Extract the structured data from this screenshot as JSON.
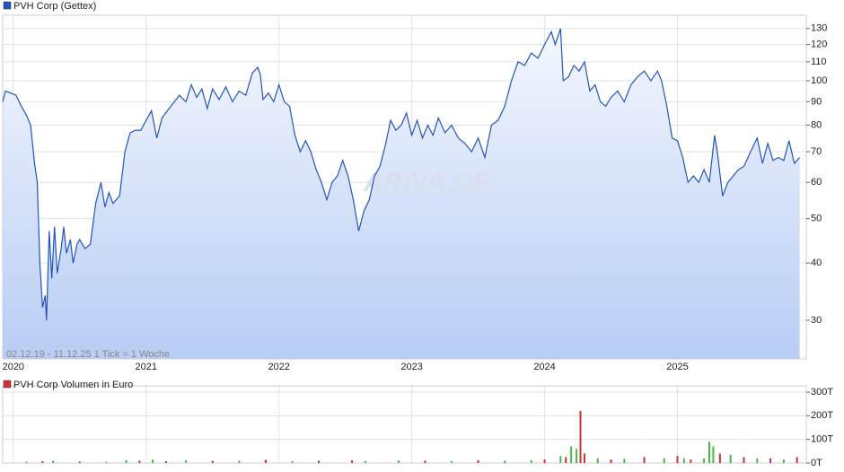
{
  "chart_data": [
    {
      "type": "line",
      "title": "PVH Corp (Gettex)",
      "subtitle": "02.12.19 - 11.12.25   1 Tick = 1 Woche",
      "watermark": "ARIVA.DE",
      "color": "#2255bb",
      "log_scale": true,
      "grid": true,
      "x": [
        2019.92,
        2019.94,
        2019.98,
        2020.02,
        2020.06,
        2020.1,
        2020.13,
        2020.16,
        2020.18,
        2020.2,
        2020.22,
        2020.24,
        2020.25,
        2020.27,
        2020.29,
        2020.31,
        2020.33,
        2020.36,
        2020.38,
        2020.4,
        2020.43,
        2020.45,
        2020.48,
        2020.5,
        2020.54,
        2020.58,
        2020.62,
        2020.66,
        2020.69,
        2020.72,
        2020.75,
        2020.8,
        2020.84,
        2020.88,
        2020.92,
        2020.96,
        2021.0,
        2021.04,
        2021.08,
        2021.12,
        2021.16,
        2021.2,
        2021.25,
        2021.3,
        2021.34,
        2021.38,
        2021.42,
        2021.46,
        2021.5,
        2021.55,
        2021.6,
        2021.65,
        2021.7,
        2021.75,
        2021.8,
        2021.84,
        2021.86,
        2021.88,
        2021.92,
        2021.96,
        2022.0,
        2022.04,
        2022.08,
        2022.12,
        2022.16,
        2022.2,
        2022.24,
        2022.28,
        2022.32,
        2022.36,
        2022.4,
        2022.44,
        2022.48,
        2022.52,
        2022.56,
        2022.6,
        2022.64,
        2022.68,
        2022.72,
        2022.76,
        2022.8,
        2022.84,
        2022.88,
        2022.92,
        2022.96,
        2023.0,
        2023.04,
        2023.08,
        2023.12,
        2023.16,
        2023.2,
        2023.25,
        2023.3,
        2023.35,
        2023.4,
        2023.45,
        2023.5,
        2023.55,
        2023.6,
        2023.65,
        2023.7,
        2023.75,
        2023.8,
        2023.85,
        2023.9,
        2023.95,
        2024.0,
        2024.05,
        2024.08,
        2024.12,
        2024.14,
        2024.18,
        2024.22,
        2024.26,
        2024.3,
        2024.34,
        2024.38,
        2024.42,
        2024.46,
        2024.5,
        2024.55,
        2024.6,
        2024.65,
        2024.7,
        2024.75,
        2024.8,
        2024.85,
        2024.88,
        2024.92,
        2024.96,
        2025.0,
        2025.04,
        2025.08,
        2025.12,
        2025.16,
        2025.2,
        2025.24,
        2025.28,
        2025.3,
        2025.34,
        2025.38,
        2025.42,
        2025.46,
        2025.5,
        2025.55,
        2025.6,
        2025.64,
        2025.68,
        2025.72,
        2025.76,
        2025.8,
        2025.84,
        2025.88,
        2025.92
      ],
      "values": [
        90,
        95,
        94,
        93,
        88,
        84,
        80,
        66,
        60,
        40,
        32,
        34,
        30,
        47,
        37,
        48,
        38,
        43,
        48,
        42,
        45,
        40,
        44,
        45,
        43,
        44,
        54,
        60,
        53,
        57,
        54,
        56,
        70,
        77,
        78,
        78,
        82,
        86,
        75,
        83,
        86,
        89,
        93,
        90,
        98,
        92,
        96,
        87,
        96,
        91,
        97,
        90,
        95,
        93,
        104,
        107,
        103,
        91,
        94,
        90,
        98,
        90,
        88,
        76,
        70,
        74,
        70,
        64,
        60,
        55,
        60,
        62,
        67,
        62,
        55,
        47,
        52,
        55,
        62,
        65,
        72,
        82,
        78,
        80,
        85,
        76,
        82,
        75,
        80,
        76,
        83,
        77,
        80,
        75,
        73,
        70,
        75,
        68,
        80,
        82,
        88,
        100,
        110,
        108,
        115,
        112,
        120,
        128,
        120,
        130,
        100,
        102,
        108,
        105,
        110,
        95,
        98,
        90,
        88,
        92,
        95,
        90,
        98,
        102,
        105,
        100,
        105,
        100,
        88,
        75,
        74,
        68,
        60,
        62,
        60,
        64,
        60,
        76,
        70,
        56,
        60,
        62,
        64,
        65,
        70,
        75,
        66,
        73,
        67,
        68,
        67,
        74,
        66,
        68
      ],
      "xlim": [
        2019.92,
        2025.97
      ],
      "xticks": [
        2020,
        2021,
        2022,
        2023,
        2024,
        2025
      ],
      "ylim": [
        24.7,
        139
      ],
      "yticks": [
        30,
        40,
        50,
        60,
        70,
        80,
        90,
        100,
        110,
        120,
        130
      ]
    },
    {
      "type": "bar",
      "title": "PVH Corp Volumen in Euro",
      "color": "#cc3333",
      "grid": true,
      "x": [
        2020.1,
        2020.22,
        2020.3,
        2020.5,
        2020.7,
        2020.85,
        2020.95,
        2021.05,
        2021.15,
        2021.3,
        2021.5,
        2021.7,
        2021.9,
        2022.1,
        2022.3,
        2022.55,
        2022.65,
        2022.9,
        2023.1,
        2023.3,
        2023.5,
        2023.7,
        2023.9,
        2024.0,
        2024.12,
        2024.16,
        2024.2,
        2024.24,
        2024.27,
        2024.3,
        2024.4,
        2024.5,
        2024.6,
        2024.75,
        2024.9,
        2025.0,
        2025.05,
        2025.1,
        2025.2,
        2025.24,
        2025.27,
        2025.32,
        2025.4,
        2025.5,
        2025.6,
        2025.7,
        2025.8,
        2025.9
      ],
      "values": [
        5,
        8,
        10,
        6,
        5,
        12,
        10,
        15,
        8,
        12,
        9,
        10,
        14,
        8,
        10,
        12,
        9,
        11,
        10,
        8,
        12,
        10,
        12,
        15,
        30,
        25,
        70,
        60,
        220,
        40,
        20,
        15,
        18,
        25,
        20,
        30,
        20,
        15,
        20,
        90,
        70,
        40,
        35,
        25,
        20,
        20,
        15,
        25
      ],
      "colors": [
        "#44bb44",
        "#cc3333",
        "#44bb44",
        "#cc3333",
        "#44bb44",
        "#44bb44",
        "#cc3333",
        "#44bb44",
        "#cc3333",
        "#44bb44",
        "#cc3333",
        "#44bb44",
        "#cc3333",
        "#44bb44",
        "#cc3333",
        "#cc3333",
        "#44bb44",
        "#44bb44",
        "#cc3333",
        "#44bb44",
        "#cc3333",
        "#44bb44",
        "#44bb44",
        "#cc3333",
        "#44bb44",
        "#cc3333",
        "#44bb44",
        "#44bb44",
        "#cc3333",
        "#cc3333",
        "#44bb44",
        "#cc3333",
        "#44bb44",
        "#cc3333",
        "#44bb44",
        "#cc3333",
        "#44bb44",
        "#cc3333",
        "#44bb44",
        "#44bb44",
        "#44bb44",
        "#cc3333",
        "#44bb44",
        "#cc3333",
        "#44bb44",
        "#cc3333",
        "#44bb44",
        "#cc3333"
      ],
      "xlim": [
        2019.92,
        2025.97
      ],
      "xticks": [
        2020,
        2021,
        2022,
        2023,
        2024,
        2025
      ],
      "ylim": [
        0,
        300
      ],
      "yticks": [
        {
          "value": 0,
          "label": "0T"
        },
        {
          "value": 100,
          "label": "100T"
        },
        {
          "value": 200,
          "label": "200T"
        },
        {
          "value": 300,
          "label": "300T"
        }
      ]
    }
  ]
}
